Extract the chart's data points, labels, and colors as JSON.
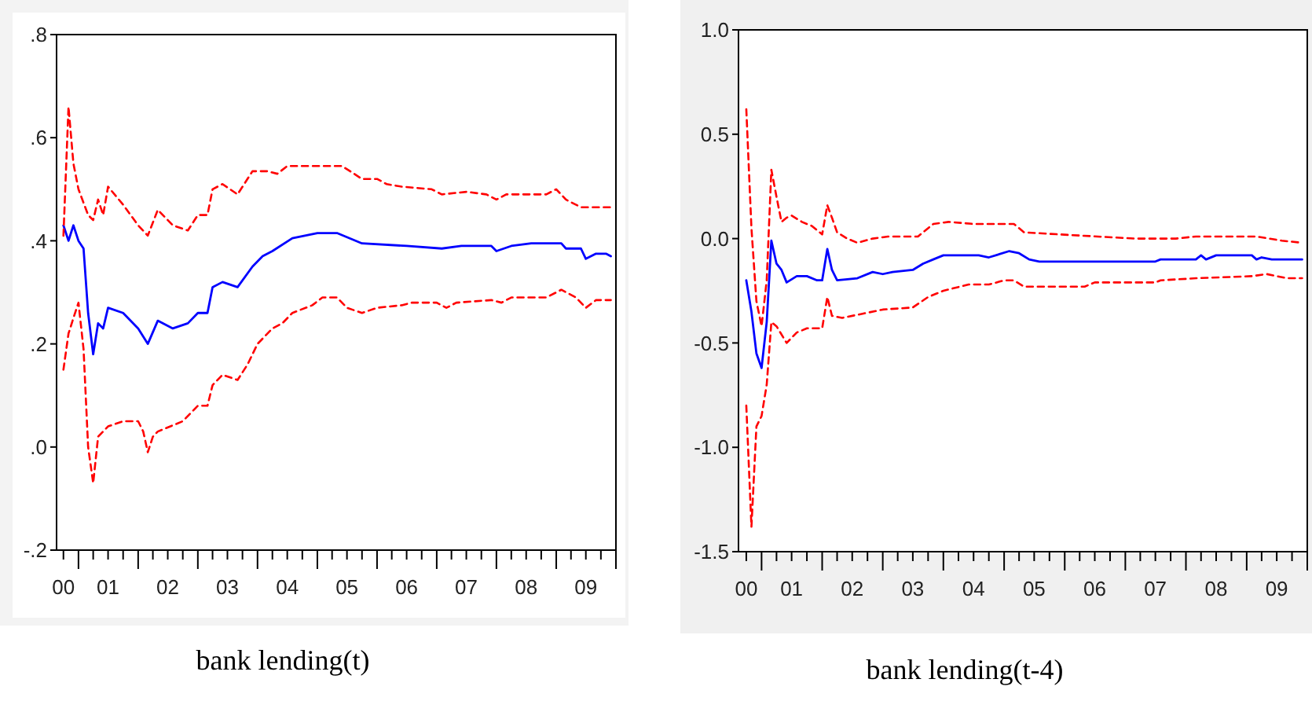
{
  "chart_data": [
    {
      "type": "line",
      "xlabel": "bank lending(t)",
      "grid": false,
      "xlim": [
        "2000-08-20",
        "2010-01-01"
      ],
      "ylim": [
        -0.2,
        0.8
      ],
      "yticks": [
        {
          "value": -0.2,
          "label": "-.2"
        },
        {
          "value": 0,
          "label": ".0"
        },
        {
          "value": 0.2,
          "label": ".2"
        },
        {
          "value": 0.4,
          "label": ".4"
        },
        {
          "value": 0.6,
          "label": ".6"
        },
        {
          "value": 0.8,
          "label": ".8"
        }
      ],
      "xticks": [
        {
          "value": "2000-10",
          "label": "00"
        },
        {
          "value": "2001-01",
          "label": null
        },
        {
          "value": "2001-04",
          "label": null
        },
        {
          "value": "2001-07",
          "label": "01"
        },
        {
          "value": "2001-10",
          "label": null
        },
        {
          "value": "2002-01",
          "label": null
        },
        {
          "value": "2002-04",
          "label": null
        },
        {
          "value": "2002-07",
          "label": "02"
        },
        {
          "value": "2002-10",
          "label": null
        },
        {
          "value": "2003-01",
          "label": null
        },
        {
          "value": "2003-04",
          "label": null
        },
        {
          "value": "2003-07",
          "label": "03"
        },
        {
          "value": "2003-10",
          "label": null
        },
        {
          "value": "2004-01",
          "label": null
        },
        {
          "value": "2004-04",
          "label": null
        },
        {
          "value": "2004-07",
          "label": "04"
        },
        {
          "value": "2004-10",
          "label": null
        },
        {
          "value": "2005-01",
          "label": null
        },
        {
          "value": "2005-04",
          "label": null
        },
        {
          "value": "2005-07",
          "label": "05"
        },
        {
          "value": "2005-10",
          "label": null
        },
        {
          "value": "2006-01",
          "label": null
        },
        {
          "value": "2006-04",
          "label": null
        },
        {
          "value": "2006-07",
          "label": "06"
        },
        {
          "value": "2006-10",
          "label": null
        },
        {
          "value": "2007-01",
          "label": null
        },
        {
          "value": "2007-04",
          "label": null
        },
        {
          "value": "2007-07",
          "label": "07"
        },
        {
          "value": "2007-10",
          "label": null
        },
        {
          "value": "2008-01",
          "label": null
        },
        {
          "value": "2008-04",
          "label": null
        },
        {
          "value": "2008-07",
          "label": "08"
        },
        {
          "value": "2008-10",
          "label": null
        },
        {
          "value": "2009-01",
          "label": null
        },
        {
          "value": "2009-04",
          "label": null
        },
        {
          "value": "2009-07",
          "label": "09"
        },
        {
          "value": "2009-10",
          "label": null
        },
        {
          "value": "2010-01",
          "label": null
        }
      ],
      "series": [
        {
          "color": "#0000ff",
          "line_style": "solid",
          "x": [
            "2000-10",
            "2000-11",
            "2000-12",
            "2001-01",
            "2001-02",
            "2001-03",
            "2001-04",
            "2001-05",
            "2001-06",
            "2001-07",
            "2001-10",
            "2002-01",
            "2002-03",
            "2002-05",
            "2002-08",
            "2002-11",
            "2003-01",
            "2003-03",
            "2003-04",
            "2003-06",
            "2003-09",
            "2003-12",
            "2004-02",
            "2004-04",
            "2004-08",
            "2005-01",
            "2005-05",
            "2005-10",
            "2006-07",
            "2007-02",
            "2007-06",
            "2007-12",
            "2008-01",
            "2008-04",
            "2008-08",
            "2009-02",
            "2009-03",
            "2009-06",
            "2009-07",
            "2009-09",
            "2009-11",
            "2009-12"
          ],
          "values": [
            0.43,
            0.4,
            0.43,
            0.4,
            0.385,
            0.26,
            0.18,
            0.24,
            0.23,
            0.27,
            0.26,
            0.23,
            0.2,
            0.245,
            0.23,
            0.24,
            0.26,
            0.26,
            0.31,
            0.32,
            0.31,
            0.35,
            0.37,
            0.38,
            0.405,
            0.415,
            0.415,
            0.395,
            0.39,
            0.385,
            0.39,
            0.39,
            0.38,
            0.39,
            0.395,
            0.395,
            0.385,
            0.385,
            0.365,
            0.375,
            0.375,
            0.37
          ]
        },
        {
          "color": "#ff0000",
          "line_style": "dashed",
          "x": [
            "2000-10",
            "2000-11",
            "2000-12",
            "2001-01",
            "2001-03",
            "2001-04",
            "2001-05",
            "2001-06",
            "2001-07",
            "2001-10",
            "2002-01",
            "2002-03",
            "2002-05",
            "2002-08",
            "2002-11",
            "2003-01",
            "2003-03",
            "2003-04",
            "2003-06",
            "2003-09",
            "2003-12",
            "2004-03",
            "2004-05",
            "2004-07",
            "2005-04",
            "2005-06",
            "2005-10",
            "2006-01",
            "2006-03",
            "2006-06",
            "2006-12",
            "2007-02",
            "2007-07",
            "2007-11",
            "2008-01",
            "2008-03",
            "2008-11",
            "2009-01",
            "2009-03",
            "2009-06",
            "2009-12"
          ],
          "values": [
            0.41,
            0.66,
            0.55,
            0.5,
            0.45,
            0.44,
            0.48,
            0.45,
            0.505,
            0.47,
            0.43,
            0.41,
            0.46,
            0.43,
            0.42,
            0.45,
            0.45,
            0.5,
            0.51,
            0.49,
            0.535,
            0.535,
            0.53,
            0.545,
            0.545,
            0.545,
            0.52,
            0.52,
            0.51,
            0.505,
            0.5,
            0.49,
            0.495,
            0.49,
            0.48,
            0.49,
            0.49,
            0.5,
            0.48,
            0.465,
            0.465
          ]
        },
        {
          "color": "#ff0000",
          "line_style": "dashed",
          "x": [
            "2000-10",
            "2000-11",
            "2000-12",
            "2001-01",
            "2001-02",
            "2001-03",
            "2001-04",
            "2001-05",
            "2001-07",
            "2001-10",
            "2002-01",
            "2002-02",
            "2002-03",
            "2002-04",
            "2002-05",
            "2002-10",
            "2003-01",
            "2003-03",
            "2003-04",
            "2003-06",
            "2003-09",
            "2003-11",
            "2004-01",
            "2004-04",
            "2004-06",
            "2004-08",
            "2004-12",
            "2005-02",
            "2005-05",
            "2005-07",
            "2005-10",
            "2006-01",
            "2006-06",
            "2006-08",
            "2007-01",
            "2007-03",
            "2007-05",
            "2007-12",
            "2008-02",
            "2008-04",
            "2008-11",
            "2009-02",
            "2009-05",
            "2009-07",
            "2009-09",
            "2009-12"
          ],
          "values": [
            0.15,
            0.22,
            0.25,
            0.28,
            0.19,
            0.0,
            -0.07,
            0.02,
            0.04,
            0.05,
            0.05,
            0.03,
            -0.01,
            0.02,
            0.03,
            0.05,
            0.08,
            0.08,
            0.12,
            0.14,
            0.13,
            0.16,
            0.2,
            0.23,
            0.24,
            0.26,
            0.275,
            0.29,
            0.29,
            0.27,
            0.26,
            0.27,
            0.275,
            0.28,
            0.28,
            0.27,
            0.28,
            0.285,
            0.28,
            0.29,
            0.29,
            0.305,
            0.29,
            0.27,
            0.285,
            0.285
          ]
        }
      ]
    },
    {
      "type": "line",
      "xlabel": "bank lending(t-4)",
      "grid": false,
      "xlim": [
        "2000-08-15",
        "2010-01-01"
      ],
      "ylim": [
        -1.5,
        1.0
      ],
      "yticks": [
        {
          "value": -1.5,
          "label": "-1.5"
        },
        {
          "value": -1,
          "label": "-1.0"
        },
        {
          "value": -0.5,
          "label": "-0.5"
        },
        {
          "value": 0,
          "label": "0.0"
        },
        {
          "value": 0.5,
          "label": "0.5"
        },
        {
          "value": 1,
          "label": "1.0"
        }
      ],
      "xticks": [
        {
          "value": "2000-10",
          "label": "00"
        },
        {
          "value": "2001-01",
          "label": null
        },
        {
          "value": "2001-04",
          "label": null
        },
        {
          "value": "2001-07",
          "label": "01"
        },
        {
          "value": "2001-10",
          "label": null
        },
        {
          "value": "2002-01",
          "label": null
        },
        {
          "value": "2002-04",
          "label": null
        },
        {
          "value": "2002-07",
          "label": "02"
        },
        {
          "value": "2002-10",
          "label": null
        },
        {
          "value": "2003-01",
          "label": null
        },
        {
          "value": "2003-04",
          "label": null
        },
        {
          "value": "2003-07",
          "label": "03"
        },
        {
          "value": "2003-10",
          "label": null
        },
        {
          "value": "2004-01",
          "label": null
        },
        {
          "value": "2004-04",
          "label": null
        },
        {
          "value": "2004-07",
          "label": "04"
        },
        {
          "value": "2004-10",
          "label": null
        },
        {
          "value": "2005-01",
          "label": null
        },
        {
          "value": "2005-04",
          "label": null
        },
        {
          "value": "2005-07",
          "label": "05"
        },
        {
          "value": "2005-10",
          "label": null
        },
        {
          "value": "2006-01",
          "label": null
        },
        {
          "value": "2006-04",
          "label": null
        },
        {
          "value": "2006-07",
          "label": "06"
        },
        {
          "value": "2006-10",
          "label": null
        },
        {
          "value": "2007-01",
          "label": null
        },
        {
          "value": "2007-04",
          "label": null
        },
        {
          "value": "2007-07",
          "label": "07"
        },
        {
          "value": "2007-10",
          "label": null
        },
        {
          "value": "2008-01",
          "label": null
        },
        {
          "value": "2008-04",
          "label": null
        },
        {
          "value": "2008-07",
          "label": "08"
        },
        {
          "value": "2008-10",
          "label": null
        },
        {
          "value": "2009-01",
          "label": null
        },
        {
          "value": "2009-04",
          "label": null
        },
        {
          "value": "2009-07",
          "label": "09"
        },
        {
          "value": "2009-10",
          "label": null
        },
        {
          "value": "2010-01",
          "label": null
        }
      ],
      "series": [
        {
          "color": "#0000ff",
          "line_style": "solid",
          "x": [
            "2000-10",
            "2000-11",
            "2000-12",
            "2001-01",
            "2001-02",
            "2001-03",
            "2001-04",
            "2001-05",
            "2001-06",
            "2001-08",
            "2001-10",
            "2001-12",
            "2002-01",
            "2002-02",
            "2002-03",
            "2002-04",
            "2002-08",
            "2002-11",
            "2003-01",
            "2003-03",
            "2003-07",
            "2003-09",
            "2003-11",
            "2004-01",
            "2004-08",
            "2004-10",
            "2005-02",
            "2005-04",
            "2005-06",
            "2005-08",
            "2007-07",
            "2007-08",
            "2008-03",
            "2008-04",
            "2008-05",
            "2008-07",
            "2009-02",
            "2009-03",
            "2009-04",
            "2009-06",
            "2009-12"
          ],
          "values": [
            -0.2,
            -0.35,
            -0.55,
            -0.62,
            -0.4,
            -0.01,
            -0.12,
            -0.15,
            -0.21,
            -0.18,
            -0.18,
            -0.2,
            -0.2,
            -0.05,
            -0.15,
            -0.2,
            -0.19,
            -0.16,
            -0.17,
            -0.16,
            -0.15,
            -0.12,
            -0.1,
            -0.08,
            -0.08,
            -0.09,
            -0.06,
            -0.07,
            -0.1,
            -0.11,
            -0.11,
            -0.1,
            -0.1,
            -0.08,
            -0.1,
            -0.08,
            -0.08,
            -0.1,
            -0.09,
            -0.1,
            -0.1
          ]
        },
        {
          "color": "#ff0000",
          "line_style": "dashed",
          "x": [
            "2000-10",
            "2000-11",
            "2000-12",
            "2001-01",
            "2001-02",
            "2001-03",
            "2001-04",
            "2001-05",
            "2001-06",
            "2001-07",
            "2001-09",
            "2001-11",
            "2002-01",
            "2002-02",
            "2002-03",
            "2002-04",
            "2002-06",
            "2002-08",
            "2002-11",
            "2003-02",
            "2003-08",
            "2003-11",
            "2004-02",
            "2004-07",
            "2005-03",
            "2005-05",
            "2005-12",
            "2007-03",
            "2007-11",
            "2008-03",
            "2009-03",
            "2009-08",
            "2009-12"
          ],
          "values": [
            0.62,
            0.05,
            -0.3,
            -0.42,
            -0.2,
            0.33,
            0.2,
            0.08,
            0.1,
            0.11,
            0.08,
            0.06,
            0.02,
            0.16,
            0.1,
            0.03,
            0.0,
            -0.02,
            0.0,
            0.01,
            0.01,
            0.07,
            0.08,
            0.07,
            0.07,
            0.03,
            0.02,
            0.0,
            0.0,
            0.01,
            0.01,
            -0.01,
            -0.02
          ]
        },
        {
          "color": "#ff0000",
          "line_style": "dashed",
          "x": [
            "2000-10",
            "2000-11",
            "2000-12",
            "2001-01",
            "2001-02",
            "2001-03",
            "2001-04",
            "2001-06",
            "2001-08",
            "2001-10",
            "2002-01",
            "2002-02",
            "2002-03",
            "2002-05",
            "2002-09",
            "2003-01",
            "2003-07",
            "2003-10",
            "2004-01",
            "2004-06",
            "2004-10",
            "2005-01",
            "2005-03",
            "2005-05",
            "2006-05",
            "2006-07",
            "2007-07",
            "2007-08",
            "2008-03",
            "2009-02",
            "2009-05",
            "2009-09",
            "2009-12"
          ],
          "values": [
            -0.8,
            -1.38,
            -0.9,
            -0.85,
            -0.7,
            -0.4,
            -0.42,
            -0.5,
            -0.45,
            -0.43,
            -0.43,
            -0.28,
            -0.37,
            -0.38,
            -0.36,
            -0.34,
            -0.33,
            -0.28,
            -0.25,
            -0.22,
            -0.22,
            -0.2,
            -0.2,
            -0.23,
            -0.23,
            -0.21,
            -0.21,
            -0.2,
            -0.19,
            -0.18,
            -0.17,
            -0.19,
            -0.19
          ]
        }
      ]
    }
  ]
}
